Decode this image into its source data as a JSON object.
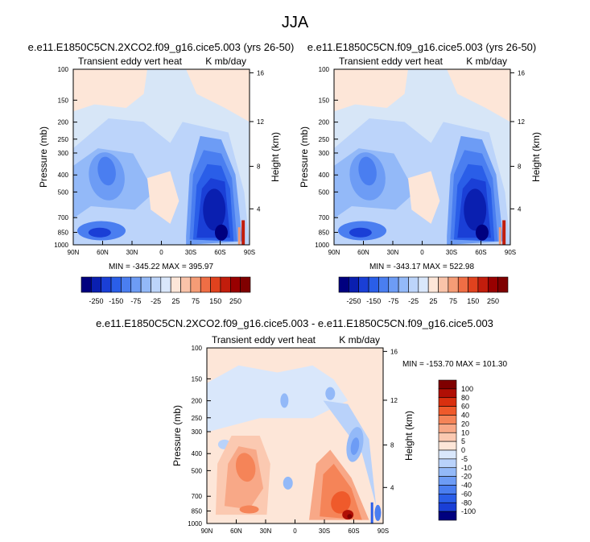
{
  "figure_title": "JJA",
  "chart_data": [
    {
      "type": "heatmap",
      "title": "e.e11.E1850C5CN.2XCO2.f09_g16.cice5.003 (yrs 26-50)",
      "left_label": "Transient eddy vert heat",
      "right_label": "K mb/day",
      "xlabel": "",
      "ylabel": "Pressure (mb)",
      "right_ylabel": "Height (km)",
      "x_ticks": [
        "90N",
        "60N",
        "30N",
        "0",
        "30S",
        "60S",
        "90S"
      ],
      "y_ticks": [
        "100",
        "150",
        "200",
        "250",
        "300",
        "400",
        "500",
        "700",
        "850",
        "1000"
      ],
      "height_ticks": [
        "16",
        "12",
        "8",
        "4"
      ],
      "stats": "MIN = -345.22   MAX = 395.97",
      "colorbar": {
        "orientation": "horizontal",
        "labels": [
          "-250",
          "-150",
          "-75",
          "-25",
          "25",
          "75",
          "150",
          "250"
        ]
      },
      "min": -345.22,
      "max": 395.97
    },
    {
      "type": "heatmap",
      "title": "e.e11.E1850C5CN.f09_g16.cice5.003 (yrs 26-50)",
      "left_label": "Transient eddy vert heat",
      "right_label": "K mb/day",
      "xlabel": "",
      "ylabel": "Pressure (mb)",
      "right_ylabel": "Height (km)",
      "x_ticks": [
        "90N",
        "60N",
        "30N",
        "0",
        "30S",
        "60S",
        "90S"
      ],
      "y_ticks": [
        "100",
        "150",
        "200",
        "250",
        "300",
        "400",
        "500",
        "700",
        "850",
        "1000"
      ],
      "height_ticks": [
        "16",
        "12",
        "8",
        "4"
      ],
      "stats": "MIN = -343.17   MAX = 522.98",
      "colorbar": {
        "orientation": "horizontal",
        "labels": [
          "-250",
          "-150",
          "-75",
          "-25",
          "25",
          "75",
          "150",
          "250"
        ]
      },
      "min": -343.17,
      "max": 522.98
    },
    {
      "type": "heatmap",
      "title": "e.e11.E1850C5CN.2XCO2.f09_g16.cice5.003 - e.e11.E1850C5CN.f09_g16.cice5.003",
      "left_label": "Transient eddy vert heat",
      "right_label": "K mb/day",
      "xlabel": "",
      "ylabel": "Pressure (mb)",
      "right_ylabel": "Height (km)",
      "x_ticks": [
        "90N",
        "60N",
        "30N",
        "0",
        "30S",
        "60S",
        "90S"
      ],
      "y_ticks": [
        "100",
        "150",
        "200",
        "250",
        "300",
        "400",
        "500",
        "700",
        "850",
        "1000"
      ],
      "height_ticks": [
        "16",
        "12",
        "8",
        "4"
      ],
      "stats": "MIN = -153.70   MAX = 101.30",
      "colorbar": {
        "orientation": "vertical",
        "labels": [
          "100",
          "80",
          "60",
          "40",
          "20",
          "10",
          "5",
          "0",
          "-5",
          "-10",
          "-20",
          "-40",
          "-60",
          "-80",
          "-100"
        ]
      },
      "min": -153.7,
      "max": 101.3
    }
  ],
  "colors": {
    "panel_bg": "#d7e6f7",
    "warm_pale": "#fde6d8",
    "abs_scale": [
      "#00007f",
      "#0a1fb0",
      "#1a3fd6",
      "#2a5ee8",
      "#4a7ef0",
      "#6d9cf5",
      "#93b9f8",
      "#bcd4fa",
      "#d9e7fb",
      "#fde6d8",
      "#f9c3a9",
      "#f59c76",
      "#ef6e45",
      "#e0421e",
      "#c21d0c",
      "#990000",
      "#7f0000"
    ],
    "diff_scale": [
      "#7f0000",
      "#b00f05",
      "#d9300f",
      "#ef5a2b",
      "#f58458",
      "#f8a887",
      "#fbc9b1",
      "#fde6d8",
      "#d9e7fb",
      "#b9d2fa",
      "#93b9f8",
      "#6d9cf5",
      "#4a7ef0",
      "#2a5ee8",
      "#1a3fd6",
      "#00007f"
    ]
  }
}
